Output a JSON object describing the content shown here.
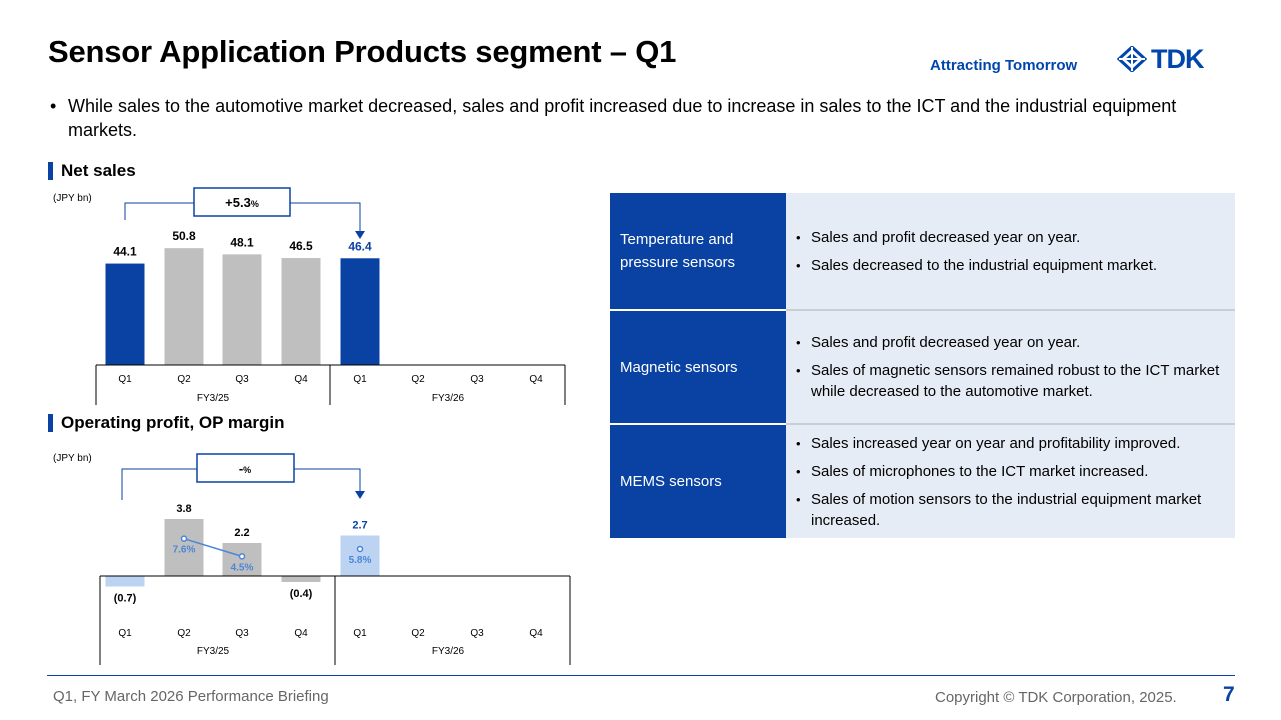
{
  "header": {
    "title": "Sensor Application Products segment – Q1",
    "tagline": "Attracting Tomorrow",
    "logo_text": "TDK"
  },
  "summary": "While sales to the automotive market decreased, sales and profit increased due to increase in sales to the ICT and the industrial equipment  markets.",
  "sections": {
    "net_sales_title": "Net sales",
    "op_title": "Operating profit, OP margin"
  },
  "colors": {
    "accent": "#0a42a3",
    "current_bar": "#0a42a3",
    "prior_bar": "#bfbfbf",
    "negative_light": "#bcd3f2",
    "margin_line": "#4a86d8",
    "table_bg": "#e6ecf5"
  },
  "chart_data": [
    {
      "type": "bar",
      "title": "Net sales",
      "unit_label": "(JPY bn)",
      "categories": [
        "Q1",
        "Q2",
        "Q3",
        "Q4",
        "Q1",
        "Q2",
        "Q3",
        "Q4"
      ],
      "groups": [
        "FY3/25",
        "FY3/26"
      ],
      "values": [
        44.1,
        50.8,
        48.1,
        46.5,
        46.4,
        null,
        null,
        null
      ],
      "labels": [
        "44.1",
        "50.8",
        "48.1",
        "46.5",
        "46.4"
      ],
      "highlight": [
        true,
        false,
        false,
        false,
        true
      ],
      "ylim": [
        0,
        55
      ],
      "change_label": "+5.3",
      "change_unit": "%"
    },
    {
      "type": "bar",
      "title": "Operating profit, OP margin",
      "unit_label": "(JPY bn)",
      "categories": [
        "Q1",
        "Q2",
        "Q3",
        "Q4",
        "Q1",
        "Q2",
        "Q3",
        "Q4"
      ],
      "groups": [
        "FY3/25",
        "FY3/26"
      ],
      "values": [
        -0.7,
        3.8,
        2.2,
        -0.4,
        2.7,
        null,
        null,
        null
      ],
      "labels": [
        "(0.7)",
        "3.8",
        "2.2",
        "(0.4)",
        "2.7"
      ],
      "margin": [
        null,
        7.6,
        4.5,
        null,
        5.8
      ],
      "margin_labels": [
        "",
        "7.6%",
        "4.5%",
        "",
        "5.8%"
      ],
      "ylim": [
        -0.7,
        3.8
      ],
      "change_label": "-",
      "change_unit": "%"
    }
  ],
  "segments": [
    {
      "name": "Temperature and pressure sensors",
      "points": [
        "Sales and profit decreased  year on year.",
        "Sales  decreased  to the industrial  equipment  market."
      ]
    },
    {
      "name": "Magnetic  sensors",
      "points": [
        "Sales and profit decreased  year on year.",
        "Sales of magnetic  sensors  remained  robust to the ICT market  while decreased  to the automotive  market."
      ]
    },
    {
      "name": "MEMS  sensors",
      "points": [
        "Sales increased year on year and profitability  improved.",
        "Sales of microphones  to the ICT market  increased.",
        "Sales of motion  sensors  to the industrial  equipment market  increased."
      ]
    }
  ],
  "footer": {
    "left": "Q1, FY March 2026 Performance Briefing",
    "right": "Copyright  © TDK Corporation, 2025.",
    "page": "7"
  }
}
